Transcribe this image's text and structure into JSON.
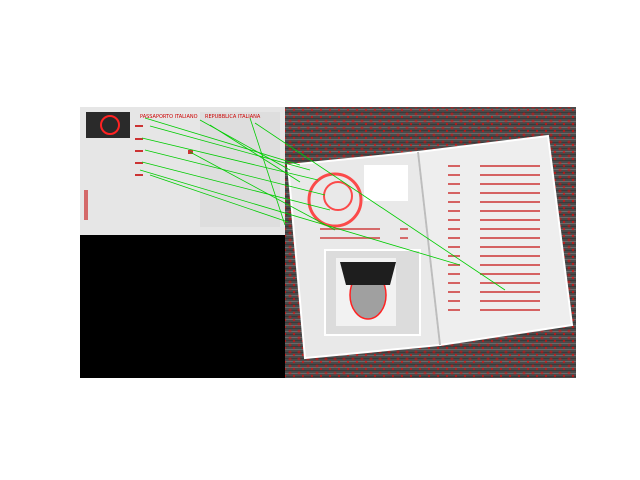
{
  "figure": {
    "kind": "keypoint-matching-visualization",
    "background_color": "#ffffff",
    "keypoint_color": "#ff0000",
    "match_line_color": "#00cc00",
    "left_image": {
      "content": "id-card-template-front",
      "tone": "grayscale",
      "header_text_left": "PASSAPORTO ITALIANO",
      "header_text_right": "REPUBBLICA ITALIANA"
    },
    "right_image": {
      "content": "open-passport-photo-page-upside-down",
      "tone": "grayscale",
      "background_texture": "wood-grain"
    },
    "match_count": 12
  }
}
